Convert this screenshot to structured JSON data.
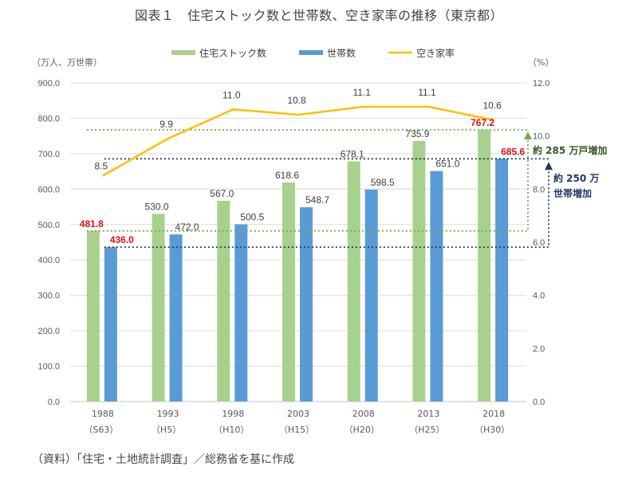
{
  "title": "図表１　住宅ストック数と世帯数、空き家率の推移（東京都）",
  "source": "（資料）「住宅・土地統計調査」／総務省を基に作成",
  "chart_data": {
    "type": "bar",
    "title": "図表１　住宅ストック数と世帯数、空き家率の推移（東京都）",
    "categories": [
      {
        "year": "1988",
        "era": "（S63）"
      },
      {
        "year": "1993",
        "era": "（H5）"
      },
      {
        "year": "1998",
        "era": "（H10）"
      },
      {
        "year": "2003",
        "era": "（H15）"
      },
      {
        "year": "2008",
        "era": "（H20）"
      },
      {
        "year": "2013",
        "era": "（H25）"
      },
      {
        "year": "2018",
        "era": "（H30）"
      }
    ],
    "series": [
      {
        "name": "住宅ストック数",
        "type": "bar",
        "axis": "left",
        "color": "#a9d18e",
        "values": [
          481.8,
          530.0,
          567.0,
          618.6,
          678.1,
          735.9,
          767.2
        ],
        "labels": [
          "481.8",
          "530.0",
          "567.0",
          "618.6",
          "678.1",
          "735.9",
          "767.2"
        ],
        "highlight": [
          true,
          false,
          false,
          false,
          false,
          false,
          true
        ]
      },
      {
        "name": "世帯数",
        "type": "bar",
        "axis": "left",
        "color": "#5b9bd5",
        "values": [
          436.0,
          472.0,
          500.5,
          548.7,
          598.5,
          651.0,
          685.6
        ],
        "labels": [
          "436.0",
          "472.0",
          "500.5",
          "548.7",
          "598.5",
          "651.0",
          "685.6"
        ],
        "highlight": [
          true,
          false,
          false,
          false,
          false,
          false,
          true
        ]
      },
      {
        "name": "空き家率",
        "type": "line",
        "axis": "right",
        "color": "#ffc000",
        "values": [
          8.5,
          9.9,
          11.0,
          10.8,
          11.1,
          11.1,
          10.6
        ],
        "labels": [
          "8.5",
          "9.9",
          "11.0",
          "10.8",
          "11.1",
          "11.1",
          "10.6"
        ]
      }
    ],
    "ylabel_left": "（万人、万世帯）",
    "ylabel_right": "（%）",
    "ylim_left": [
      0,
      900
    ],
    "ylim_right": [
      0,
      12
    ],
    "yticks_left": [
      "0.0",
      "100.0",
      "200.0",
      "300.0",
      "400.0",
      "500.0",
      "600.0",
      "700.0",
      "800.0",
      "900.0"
    ],
    "yticks_right": [
      "0.0",
      "2.0",
      "4.0",
      "6.0",
      "8.0",
      "10.0",
      "12.0"
    ],
    "grid": true,
    "legend": "top-center",
    "highlight_color": "#e0101a",
    "annotations": [
      {
        "text": "約 285 万戸増加",
        "color": "#375623",
        "line_color": "#70ad47",
        "from": 481.8,
        "to": 767.2
      },
      {
        "text_lines": [
          "約 250 万",
          "世帯増加"
        ],
        "color": "#1f3864",
        "line_color": "#1f3864",
        "from": 436.0,
        "to": 685.6
      }
    ]
  }
}
